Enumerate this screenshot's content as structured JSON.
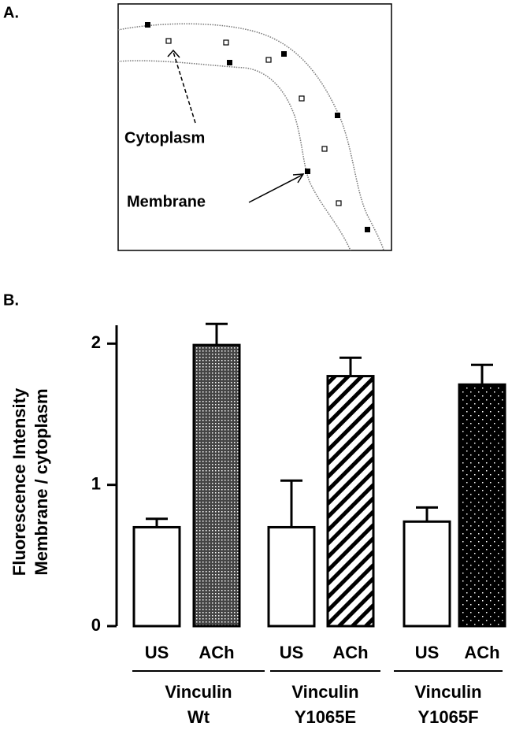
{
  "panel_a": {
    "label": "A.",
    "cytoplasm_label": "Cytoplasm",
    "membrane_label": "Membrane"
  },
  "chart_data": {
    "type": "bar",
    "panel_label": "B.",
    "ylabel": [
      "Fluorescence Intensity",
      "Membrane / cytoplasm"
    ],
    "categories": [
      "US",
      "ACh",
      "US",
      "ACh",
      "US",
      "ACh"
    ],
    "values": [
      0.7,
      1.99,
      0.7,
      1.77,
      0.74,
      1.71
    ],
    "errors": [
      0.06,
      0.15,
      0.33,
      0.13,
      0.1,
      0.14
    ],
    "fills": [
      "white",
      "dots",
      "white",
      "hatch",
      "white",
      "black-dots"
    ],
    "groups": [
      [
        "Vinculin",
        "Wt"
      ],
      [
        "Vinculin",
        "Y1065E"
      ],
      [
        "Vinculin",
        "Y1065F"
      ]
    ],
    "ylim": [
      0,
      2.13
    ],
    "yticks": [
      0,
      1,
      2
    ]
  }
}
